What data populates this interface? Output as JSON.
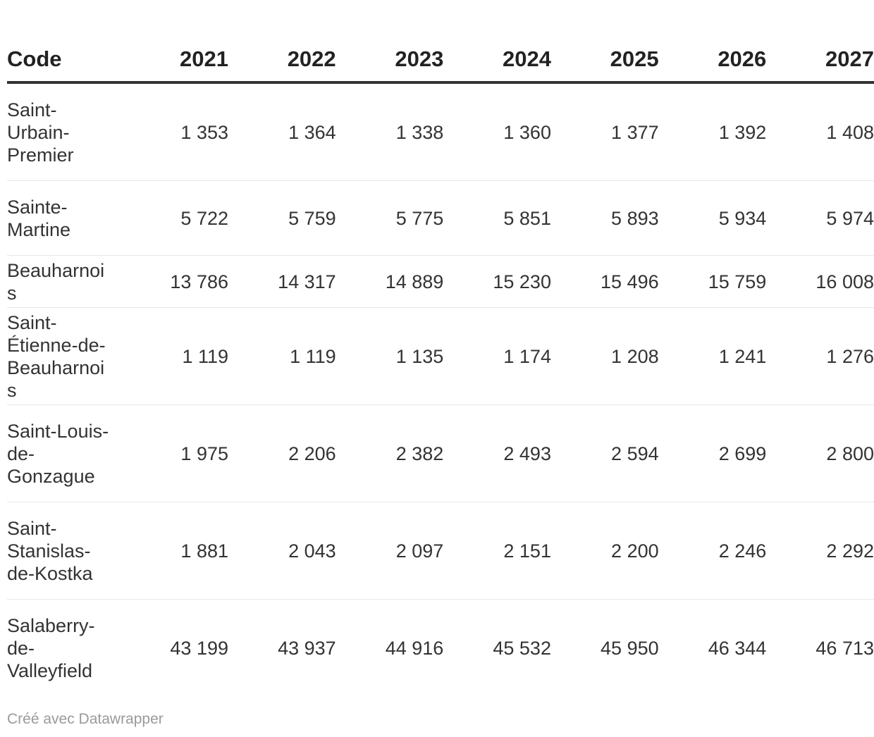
{
  "table": {
    "columns": [
      "Code",
      "2021",
      "2022",
      "2023",
      "2024",
      "2025",
      "2026",
      "2027"
    ],
    "rows": [
      {
        "name": "Saint-\nUrbain-\nPremier",
        "lines": 3,
        "values": [
          "1 353",
          "1 364",
          "1 338",
          "1 360",
          "1 377",
          "1 392",
          "1 408"
        ]
      },
      {
        "name": "Sainte-\nMartine",
        "lines": 2,
        "values": [
          "5 722",
          "5 759",
          "5 775",
          "5 851",
          "5 893",
          "5 934",
          "5 974"
        ]
      },
      {
        "name": "Beauharnois",
        "lines": 1,
        "values": [
          "13 786",
          "14 317",
          "14 889",
          "15 230",
          "15 496",
          "15 759",
          "16 008"
        ]
      },
      {
        "name": "Saint-\nÉtienne-de-\nBeauharnois",
        "lines": 3,
        "values": [
          "1 119",
          "1 119",
          "1 135",
          "1 174",
          "1 208",
          "1 241",
          "1 276"
        ]
      },
      {
        "name": "Saint-Louis-\nde-\nGonzague",
        "lines": 3,
        "values": [
          "1 975",
          "2 206",
          "2 382",
          "2 493",
          "2 594",
          "2 699",
          "2 800"
        ]
      },
      {
        "name": "Saint-\nStanislas-\nde-Kostka",
        "lines": 3,
        "values": [
          "1 881",
          "2 043",
          "2 097",
          "2 151",
          "2 200",
          "2 246",
          "2 292"
        ]
      },
      {
        "name": "Salaberry-\nde-\nValleyfield",
        "lines": 3,
        "values": [
          "43 199",
          "43 937",
          "44 916",
          "45 532",
          "45 950",
          "46 344",
          "46 713"
        ]
      }
    ]
  },
  "footer": {
    "credit": "Créé avec Datawrapper"
  }
}
